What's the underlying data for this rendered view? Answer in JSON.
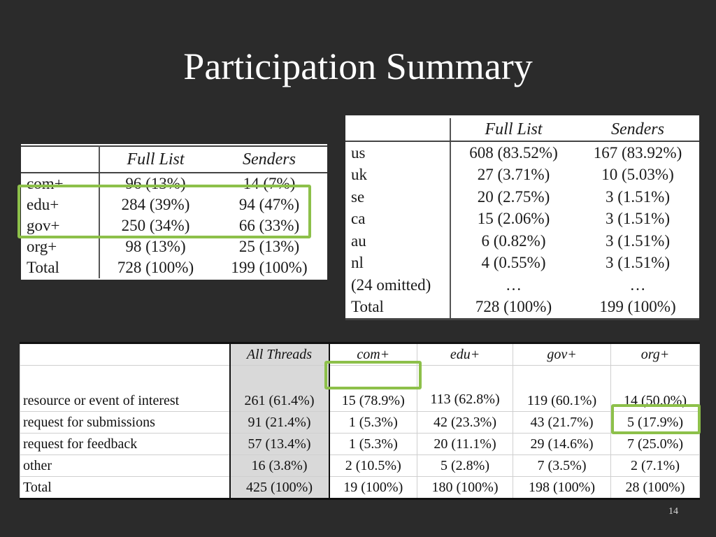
{
  "slide": {
    "title": "Participation Summary",
    "page_number": "14"
  },
  "domain_table": {
    "headers": [
      "",
      "Full List",
      "Senders"
    ],
    "rows": [
      [
        "com+",
        "96 (13%)",
        "14 (7%)"
      ],
      [
        "edu+",
        "284 (39%)",
        "94 (47%)"
      ],
      [
        "gov+",
        "250 (34%)",
        "66 (33%)"
      ],
      [
        "org+",
        "98 (13%)",
        "25 (13%)"
      ],
      [
        "Total",
        "728 (100%)",
        "199 (100%)"
      ]
    ]
  },
  "country_table": {
    "headers": [
      "",
      "Full List",
      "Senders"
    ],
    "rows": [
      [
        "us",
        "608 (83.52%)",
        "167 (83.92%)"
      ],
      [
        "uk",
        "27 (3.71%)",
        "10 (5.03%)"
      ],
      [
        "se",
        "20 (2.75%)",
        "3 (1.51%)"
      ],
      [
        "ca",
        "15 (2.06%)",
        "3 (1.51%)"
      ],
      [
        "au",
        "6 (0.82%)",
        "3 (1.51%)"
      ],
      [
        "nl",
        "4 (0.55%)",
        "3 (1.51%)"
      ],
      [
        "(24 omitted)",
        "…",
        "…"
      ],
      [
        "Total",
        "728 (100%)",
        "199 (100%)"
      ]
    ]
  },
  "thread_table": {
    "headers": [
      "",
      "All Threads",
      "com+",
      "edu+",
      "gov+",
      "org+"
    ],
    "rows": [
      [
        "resource or event of interest",
        "261 (61.4%)",
        "15 (78.9%)",
        "113 (62.8%)",
        "119 (60.1%)",
        "14 (50.0%)"
      ],
      [
        "request for submissions",
        "91 (21.4%)",
        "1 (5.3%)",
        "42 (23.3%)",
        "43 (21.7%)",
        "5 (17.9%)"
      ],
      [
        "request for feedback",
        "57 (13.4%)",
        "1 (5.3%)",
        "20 (11.1%)",
        "29 (14.6%)",
        "7 (25.0%)"
      ],
      [
        "other",
        "16 (3.8%)",
        "2 (10.5%)",
        "5 (2.8%)",
        "7 (3.5%)",
        "2 (7.1%)"
      ],
      [
        "Total",
        "425 (100%)",
        "19 (100%)",
        "180 (100%)",
        "198 (100%)",
        "28 (100%)"
      ]
    ]
  },
  "colors": {
    "background": "#2b2b2b",
    "highlight": "#8dc04a",
    "shaded_column": "#d9d9d9"
  }
}
